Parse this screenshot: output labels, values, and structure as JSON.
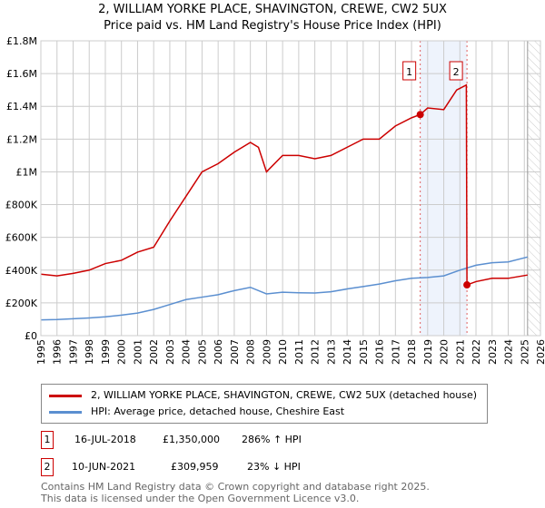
{
  "title": "2, WILLIAM YORKE PLACE, SHAVINGTON, CREWE, CW2 5UX",
  "subtitle": "Price paid vs. HM Land Registry's House Price Index (HPI)",
  "chart_data": {
    "type": "line",
    "xlim": [
      1995,
      2026
    ],
    "ylim": [
      0,
      1800000
    ],
    "yticks": [
      {
        "v": 0,
        "l": "£0"
      },
      {
        "v": 200000,
        "l": "£200K"
      },
      {
        "v": 400000,
        "l": "£400K"
      },
      {
        "v": 600000,
        "l": "£600K"
      },
      {
        "v": 800000,
        "l": "£800K"
      },
      {
        "v": 1000000,
        "l": "£1M"
      },
      {
        "v": 1200000,
        "l": "£1.2M"
      },
      {
        "v": 1400000,
        "l": "£1.4M"
      },
      {
        "v": 1600000,
        "l": "£1.6M"
      },
      {
        "v": 1800000,
        "l": "£1.8M"
      }
    ],
    "xticks": [
      "1995",
      "1996",
      "1997",
      "1998",
      "1999",
      "2000",
      "2001",
      "2002",
      "2003",
      "2004",
      "2005",
      "2006",
      "2007",
      "2008",
      "2009",
      "2010",
      "2011",
      "2012",
      "2013",
      "2014",
      "2015",
      "2016",
      "2017",
      "2018",
      "2019",
      "2020",
      "2021",
      "2022",
      "2023",
      "2024",
      "2025",
      "2026"
    ],
    "series": [
      {
        "name": "2, WILLIAM YORKE PLACE, SHAVINGTON, CREWE, CW2 5UX (detached house)",
        "color": "#cc0000",
        "x": [
          1995,
          1996,
          1997,
          1998,
          1999,
          2000,
          2001,
          2002,
          2003,
          2004,
          2005,
          2006,
          2007,
          2008,
          2008.5,
          2009,
          2010,
          2011,
          2012,
          2013,
          2014,
          2015,
          2016,
          2017,
          2018,
          2018.54,
          2019,
          2020,
          2020.8,
          2021.4,
          2021.44,
          2022,
          2023,
          2024,
          2025.2
        ],
        "y": [
          375000,
          365000,
          380000,
          400000,
          440000,
          460000,
          510000,
          540000,
          700000,
          850000,
          1000000,
          1050000,
          1120000,
          1180000,
          1150000,
          1000000,
          1100000,
          1100000,
          1080000,
          1100000,
          1150000,
          1200000,
          1200000,
          1280000,
          1330000,
          1350000,
          1390000,
          1380000,
          1500000,
          1530000,
          309959,
          330000,
          350000,
          350000,
          370000
        ]
      },
      {
        "name": "HPI: Average price, detached house, Cheshire East",
        "color": "#5b8fd0",
        "x": [
          1995,
          1996,
          1997,
          1998,
          1999,
          2000,
          2001,
          2002,
          2003,
          2004,
          2005,
          2006,
          2007,
          2008,
          2009,
          2010,
          2011,
          2012,
          2013,
          2014,
          2015,
          2016,
          2017,
          2018,
          2019,
          2020,
          2021,
          2022,
          2023,
          2024,
          2025.2
        ],
        "y": [
          96000,
          98000,
          103000,
          108000,
          115000,
          125000,
          138000,
          160000,
          190000,
          220000,
          235000,
          250000,
          275000,
          295000,
          255000,
          265000,
          262000,
          260000,
          268000,
          285000,
          300000,
          315000,
          335000,
          350000,
          355000,
          365000,
          400000,
          430000,
          445000,
          450000,
          480000
        ]
      }
    ],
    "sales": [
      {
        "label": "1",
        "x": 2018.54,
        "y": 1350000
      },
      {
        "label": "2",
        "x": 2021.44,
        "y": 309959
      }
    ],
    "forecast_start": 2025.2
  },
  "legend": [
    "2, WILLIAM YORKE PLACE, SHAVINGTON, CREWE, CW2 5UX (detached house)",
    "HPI: Average price, detached house, Cheshire East"
  ],
  "table": [
    {
      "num": "1",
      "date": "16-JUL-2018",
      "price": "£1,350,000",
      "hpi": "286% ↑ HPI"
    },
    {
      "num": "2",
      "date": "10-JUN-2021",
      "price": "£309,959",
      "hpi": "23% ↓ HPI"
    }
  ],
  "footer": [
    "Contains HM Land Registry data © Crown copyright and database right 2025.",
    "This data is licensed under the Open Government Licence v3.0."
  ]
}
